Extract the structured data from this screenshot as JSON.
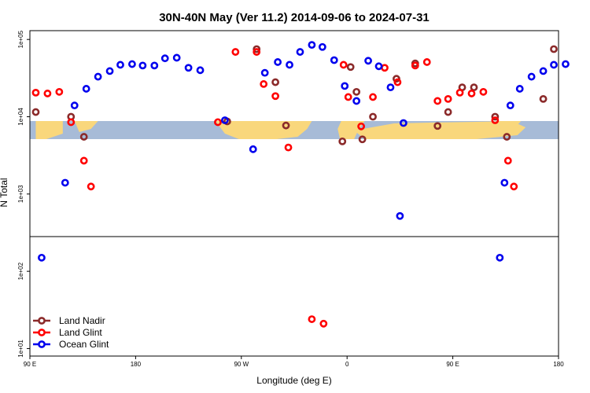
{
  "chart_data": {
    "type": "scatter",
    "title": "30N-40N May (Ver 11.2)   2014-09-06 to 2024-07-31",
    "xlabel": "Longitude (deg E)",
    "ylabel": "N Total",
    "x_ticks": [
      {
        "value": 90,
        "label": "90 E"
      },
      {
        "value": 180,
        "label": "180"
      },
      {
        "value": 270,
        "label": "90 W"
      },
      {
        "value": 360,
        "label": "0"
      },
      {
        "value": 450,
        "label": "90 E"
      },
      {
        "value": 540,
        "label": "180"
      }
    ],
    "xlim": [
      90,
      540
    ],
    "y_scale": "log",
    "y_ticks": [
      "1e+01",
      "1e+02",
      "1e+03",
      "1e+04",
      "1e+05"
    ],
    "ylim": [
      8,
      130000
    ],
    "legend_position": "bottom-left",
    "colors": {
      "land_nadir": "#8b2a2a",
      "land_glint": "#ff0000",
      "ocean_glint": "#0000ee",
      "map_ocean": "#a7bbd7",
      "map_land": "#f9d77c"
    },
    "series": [
      {
        "name": "Land Nadir",
        "color": "#8b2a2a",
        "points": [
          [
            95,
            11500
          ],
          [
            125,
            10000
          ],
          [
            136,
            5500
          ],
          [
            258,
            8700
          ],
          [
            283,
            75000
          ],
          [
            299,
            28000
          ],
          [
            308,
            7700
          ],
          [
            356,
            4800
          ],
          [
            363,
            44000
          ],
          [
            368,
            21000
          ],
          [
            373,
            5100
          ],
          [
            382,
            10000
          ],
          [
            402,
            31000
          ],
          [
            418,
            49000
          ],
          [
            437,
            7600
          ],
          [
            446,
            11500
          ],
          [
            458,
            24000
          ],
          [
            468,
            24000
          ],
          [
            486,
            10000
          ],
          [
            496,
            5500
          ],
          [
            527,
            17000
          ],
          [
            536,
            75000
          ]
        ]
      },
      {
        "name": "Land Glint",
        "color": "#ff0000",
        "points": [
          [
            95,
            20500
          ],
          [
            105,
            20000
          ],
          [
            115,
            21000
          ],
          [
            125,
            8500
          ],
          [
            136,
            2700
          ],
          [
            142,
            1250
          ],
          [
            250,
            8500
          ],
          [
            265,
            69000
          ],
          [
            283,
            69000
          ],
          [
            289,
            26500
          ],
          [
            299,
            18500
          ],
          [
            310,
            4000
          ],
          [
            330,
            24
          ],
          [
            340,
            21
          ],
          [
            357,
            47000
          ],
          [
            361,
            18000
          ],
          [
            372,
            7500
          ],
          [
            382,
            18000
          ],
          [
            392,
            43000
          ],
          [
            403,
            28000
          ],
          [
            418,
            46000
          ],
          [
            428,
            51000
          ],
          [
            437,
            16000
          ],
          [
            446,
            17000
          ],
          [
            456,
            20500
          ],
          [
            466,
            20000
          ],
          [
            476,
            21000
          ],
          [
            486,
            9000
          ],
          [
            497,
            2700
          ],
          [
            502,
            1250
          ]
        ]
      },
      {
        "name": "Ocean Glint",
        "color": "#0000ee",
        "points": [
          [
            100,
            150
          ],
          [
            120,
            1400
          ],
          [
            128,
            14000
          ],
          [
            138,
            23000
          ],
          [
            148,
            33000
          ],
          [
            158,
            39000
          ],
          [
            167,
            47000
          ],
          [
            177,
            48000
          ],
          [
            186,
            46000
          ],
          [
            196,
            46000
          ],
          [
            205,
            57000
          ],
          [
            215,
            58000
          ],
          [
            225,
            43000
          ],
          [
            235,
            40000
          ],
          [
            256,
            9000
          ],
          [
            280,
            3800
          ],
          [
            290,
            37000
          ],
          [
            301,
            51000
          ],
          [
            311,
            47000
          ],
          [
            320,
            69000
          ],
          [
            330,
            85000
          ],
          [
            339,
            80000
          ],
          [
            349,
            54000
          ],
          [
            358,
            25000
          ],
          [
            368,
            16000
          ],
          [
            378,
            53000
          ],
          [
            387,
            45000
          ],
          [
            397,
            24000
          ],
          [
            405,
            520
          ],
          [
            408,
            8300
          ],
          [
            490,
            150
          ],
          [
            494,
            1400
          ],
          [
            499,
            14000
          ],
          [
            507,
            23000
          ],
          [
            517,
            33000
          ],
          [
            527,
            39000
          ],
          [
            536,
            47000
          ],
          [
            546,
            48000
          ]
        ]
      }
    ]
  }
}
